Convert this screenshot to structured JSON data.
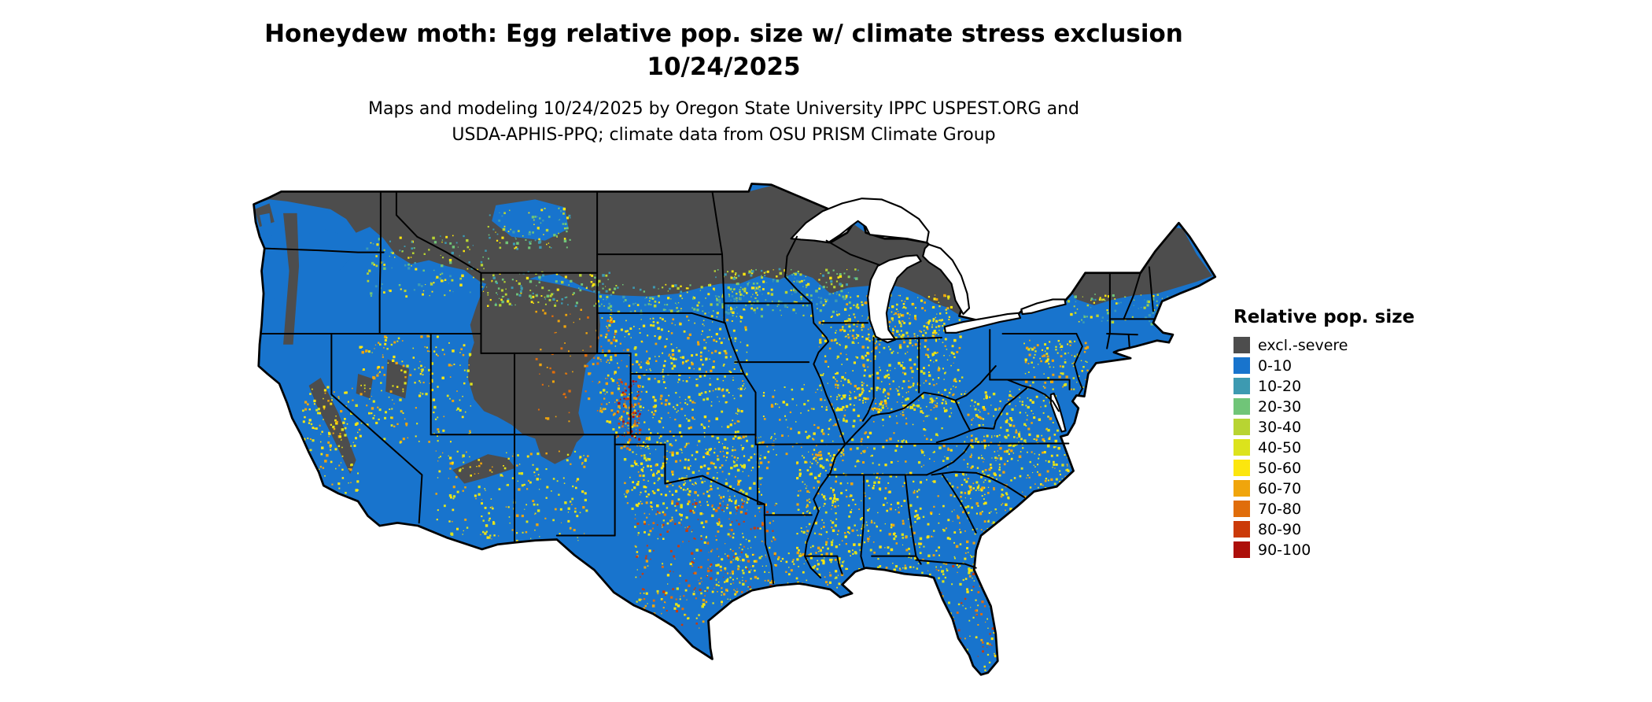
{
  "title": {
    "line1": "Honeydew moth: Egg relative pop. size w/ climate stress exclusion",
    "line2": "10/24/2025"
  },
  "subtitle": {
    "line1": "Maps and modeling 10/24/2025 by Oregon State University IPPC USPEST.ORG and",
    "line2": "USDA-APHIS-PPQ; climate data from OSU PRISM Climate Group"
  },
  "legend": {
    "title": "Relative pop. size",
    "items": [
      {
        "label": "excl.-severe",
        "color": "#4d4d4d"
      },
      {
        "label": "0-10",
        "color": "#1874cd"
      },
      {
        "label": "10-20",
        "color": "#3d9ab1"
      },
      {
        "label": "20-30",
        "color": "#70c578"
      },
      {
        "label": "30-40",
        "color": "#b8d432"
      },
      {
        "label": "40-50",
        "color": "#dce31c"
      },
      {
        "label": "50-60",
        "color": "#fce60e"
      },
      {
        "label": "60-70",
        "color": "#f0a50c"
      },
      {
        "label": "70-80",
        "color": "#e06d0b"
      },
      {
        "label": "80-90",
        "color": "#cb3a09"
      },
      {
        "label": "90-100",
        "color": "#ad0f0a"
      }
    ]
  },
  "map": {
    "region": "Continental United States",
    "base_color": "#1874cd",
    "excluded_color": "#4d4d4d",
    "water_color": "#ffffff",
    "boundary_color": "#000000"
  }
}
